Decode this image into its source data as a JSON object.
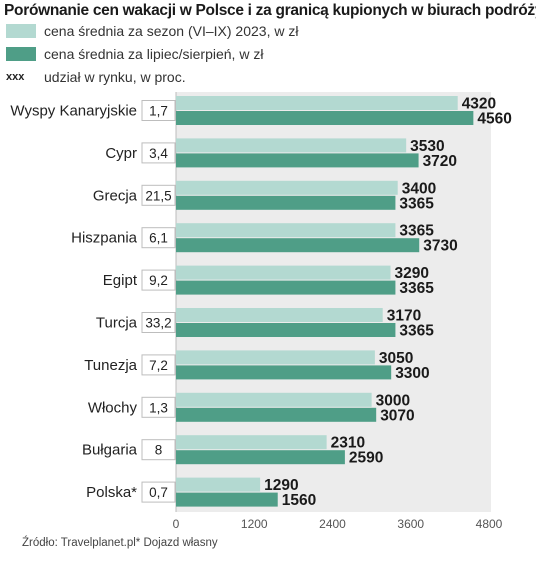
{
  "chart_data": {
    "type": "bar",
    "title": "Porównanie cen wakacji w Polsce i za granicą kupionych w biurach podróży,",
    "legend": {
      "series1": "cena średnia za sezon (VI–IX) 2023, w zł",
      "series2": "cena  średnia za lipiec/sierpień, w zł",
      "share_marker": "xxx",
      "share": "udział w rynku, w proc."
    },
    "categories": [
      "Wyspy Kanaryjskie",
      "Cypr",
      "Grecja",
      "Hiszpania",
      "Egipt",
      "Turcja",
      "Tunezja",
      "Włochy",
      "Bułgaria",
      "Polska*"
    ],
    "market_share": [
      "1,7",
      "3,4",
      "21,5",
      "6,1",
      "9,2",
      "33,2",
      "7,2",
      "1,3",
      "8",
      "0,7"
    ],
    "series": [
      {
        "name": "cena średnia za sezon (VI–IX) 2023, w zł",
        "color": "#b3d9d1",
        "values": [
          4320,
          3530,
          3400,
          3365,
          3290,
          3170,
          3050,
          3000,
          2310,
          1290
        ]
      },
      {
        "name": "cena  średnia za lipiec/sierpień, w zł",
        "color": "#4f9e87",
        "values": [
          4560,
          3720,
          3365,
          3730,
          3365,
          3365,
          3300,
          3070,
          2590,
          1560
        ]
      }
    ],
    "xlim": [
      0,
      4800
    ],
    "xticks": [
      "0",
      "1200",
      "2400",
      "3600",
      "4800"
    ],
    "grid": false,
    "source": "Źródło: Travelplanet.pl* Dojazd własny"
  }
}
